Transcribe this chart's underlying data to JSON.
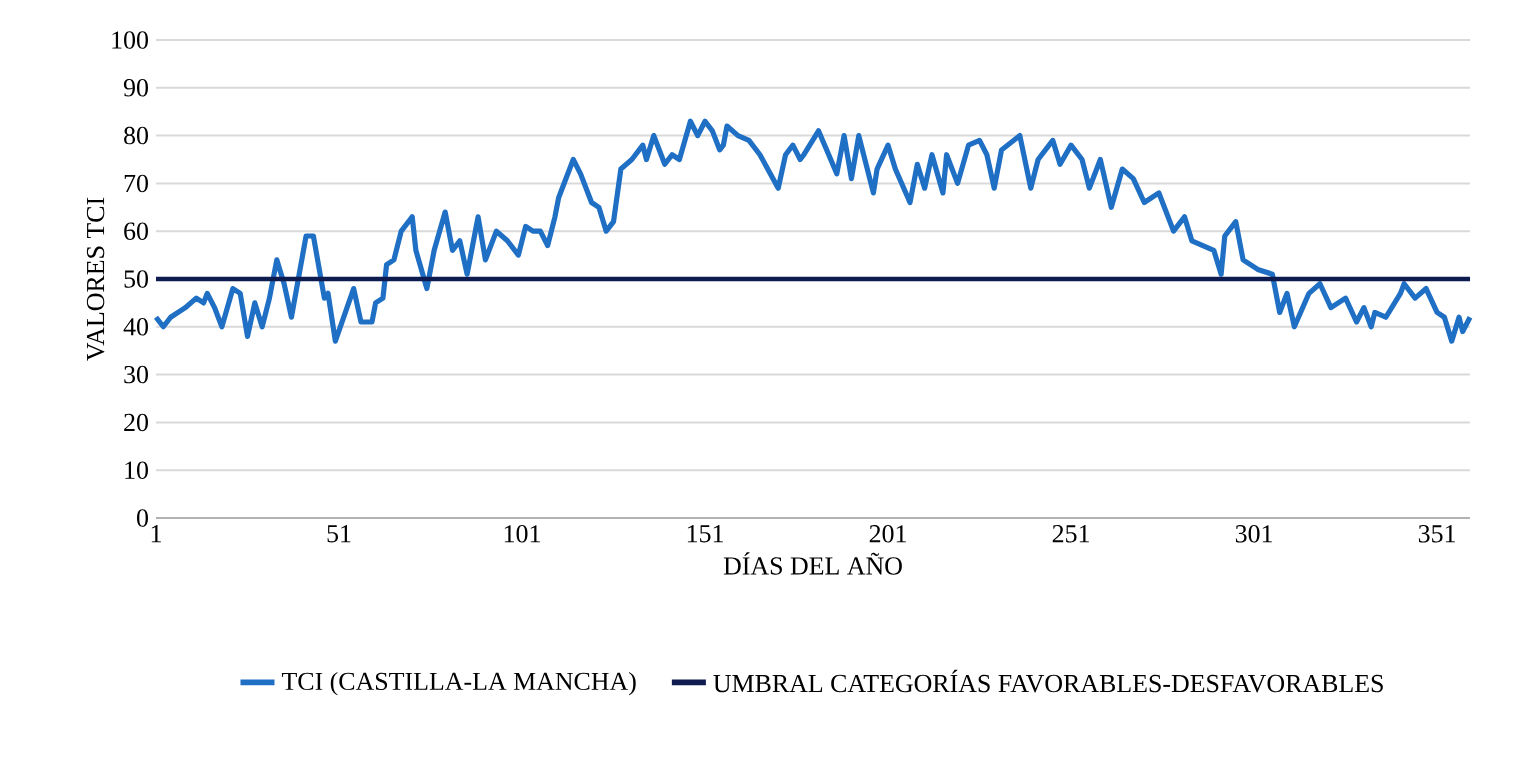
{
  "chart_data": {
    "type": "line",
    "xlabel": "DÍAS DEL AÑO",
    "ylabel": "VALORES TCI",
    "xlim": [
      1,
      360
    ],
    "xticks": [
      1,
      51,
      101,
      151,
      201,
      251,
      301,
      351
    ],
    "ylim": [
      0,
      100
    ],
    "yticks": [
      0,
      10,
      20,
      30,
      40,
      50,
      60,
      70,
      80,
      90,
      100
    ],
    "grid": "y",
    "legend": "bottom",
    "series": [
      {
        "name": "TCI (CASTILLA-LA MANCHA)",
        "color": "#1f6fc4",
        "x": [
          1,
          3,
          5,
          9,
          12,
          14,
          15,
          17,
          19,
          22,
          24,
          26,
          28,
          30,
          32,
          34,
          36,
          38,
          42,
          44,
          47,
          48,
          50,
          55,
          57,
          60,
          61,
          63,
          64,
          66,
          68,
          71,
          72,
          75,
          77,
          80,
          82,
          84,
          86,
          89,
          91,
          94,
          97,
          100,
          102,
          104,
          106,
          108,
          110,
          111,
          115,
          117,
          120,
          122,
          124,
          126,
          128,
          131,
          134,
          135,
          137,
          140,
          142,
          144,
          147,
          149,
          151,
          153,
          155,
          156,
          157,
          160,
          163,
          166,
          171,
          173,
          175,
          177,
          178,
          182,
          187,
          189,
          191,
          193,
          197,
          198,
          201,
          203,
          207,
          209,
          211,
          213,
          216,
          217,
          220,
          223,
          226,
          228,
          230,
          232,
          237,
          240,
          242,
          246,
          248,
          251,
          254,
          256,
          259,
          262,
          265,
          268,
          271,
          275,
          279,
          282,
          284,
          287,
          290,
          292,
          293,
          296,
          298,
          302,
          306,
          308,
          310,
          312,
          316,
          319,
          322,
          326,
          329,
          331,
          333,
          334,
          337,
          341,
          342,
          345,
          348,
          351,
          353,
          355,
          357,
          358,
          360
        ],
        "values": [
          42,
          40,
          42,
          44,
          46,
          45,
          47,
          44,
          40,
          48,
          47,
          38,
          45,
          40,
          46,
          54,
          49,
          42,
          59,
          59,
          46,
          47,
          37,
          48,
          41,
          41,
          45,
          46,
          53,
          54,
          60,
          63,
          56,
          48,
          56,
          64,
          56,
          58,
          51,
          63,
          54,
          60,
          58,
          55,
          61,
          60,
          60,
          57,
          63,
          67,
          75,
          72,
          66,
          65,
          60,
          62,
          73,
          75,
          78,
          75,
          80,
          74,
          76,
          75,
          83,
          80,
          83,
          81,
          77,
          78,
          82,
          80,
          79,
          76,
          69,
          76,
          78,
          75,
          76,
          81,
          72,
          80,
          71,
          80,
          68,
          73,
          78,
          73,
          66,
          74,
          69,
          76,
          68,
          76,
          70,
          78,
          79,
          76,
          69,
          77,
          80,
          69,
          75,
          79,
          74,
          78,
          75,
          69,
          75,
          65,
          73,
          71,
          66,
          68,
          60,
          63,
          58,
          57,
          56,
          51,
          59,
          62,
          54,
          52,
          51,
          43,
          47,
          40,
          47,
          49,
          44,
          46,
          41,
          44,
          40,
          43,
          42,
          47,
          49,
          46,
          48,
          43,
          42,
          37,
          42,
          39,
          42
        ]
      },
      {
        "name": "UMBRAL CATEGORÍAS FAVORABLES-DESFAVORABLES",
        "color": "#0d1b4f",
        "x": [
          1,
          360
        ],
        "values": [
          50,
          50
        ]
      }
    ]
  }
}
